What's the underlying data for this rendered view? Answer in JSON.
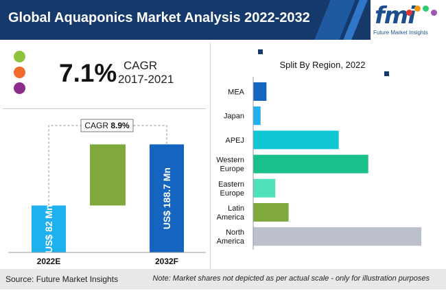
{
  "header": {
    "title": "Global Aquaponics Market Analysis 2022-2032",
    "logo_text": "fmi",
    "logo_subtitle": "Future Market Insights"
  },
  "summary": {
    "dot_colors": [
      "#8cc43e",
      "#f26a2c",
      "#8d2c8a"
    ],
    "cagr_value": "7.1%",
    "cagr_label": "CAGR",
    "cagr_period": "2017-2021"
  },
  "chart_data": [
    {
      "type": "bar",
      "categories": [
        "2022E",
        "2032F"
      ],
      "values": [
        82,
        188.7
      ],
      "value_labels": [
        "US$ 82 Mn",
        "US$ 188.7 Mn"
      ],
      "bar_colors": [
        "#1fb0ef",
        "#1565c0"
      ],
      "growth_bar_color": "#7fa93a",
      "cagr_annotation_label": "CAGR",
      "cagr_annotation_value": "8.9%"
    },
    {
      "type": "bar",
      "orientation": "horizontal",
      "title": "Split By Region, 2022",
      "categories": [
        [
          "MEA"
        ],
        [
          "Japan"
        ],
        [
          "APEJ"
        ],
        [
          "Western",
          "Europe"
        ],
        [
          "Eastern",
          "Europe"
        ],
        [
          "Latin",
          "America"
        ],
        [
          "North",
          "America"
        ]
      ],
      "values": [
        4.5,
        2.5,
        29,
        39,
        7.5,
        12,
        57
      ],
      "bar_colors": [
        "#1565c0",
        "#1fb0ef",
        "#13c6d6",
        "#1ac08c",
        "#4fe1ba",
        "#7fa93a",
        "#bcc0cc"
      ]
    }
  ],
  "footer": {
    "source": "Source: Future Market Insights",
    "note": "Note: Market shares not depicted as per actual scale - only for illustration purposes"
  }
}
